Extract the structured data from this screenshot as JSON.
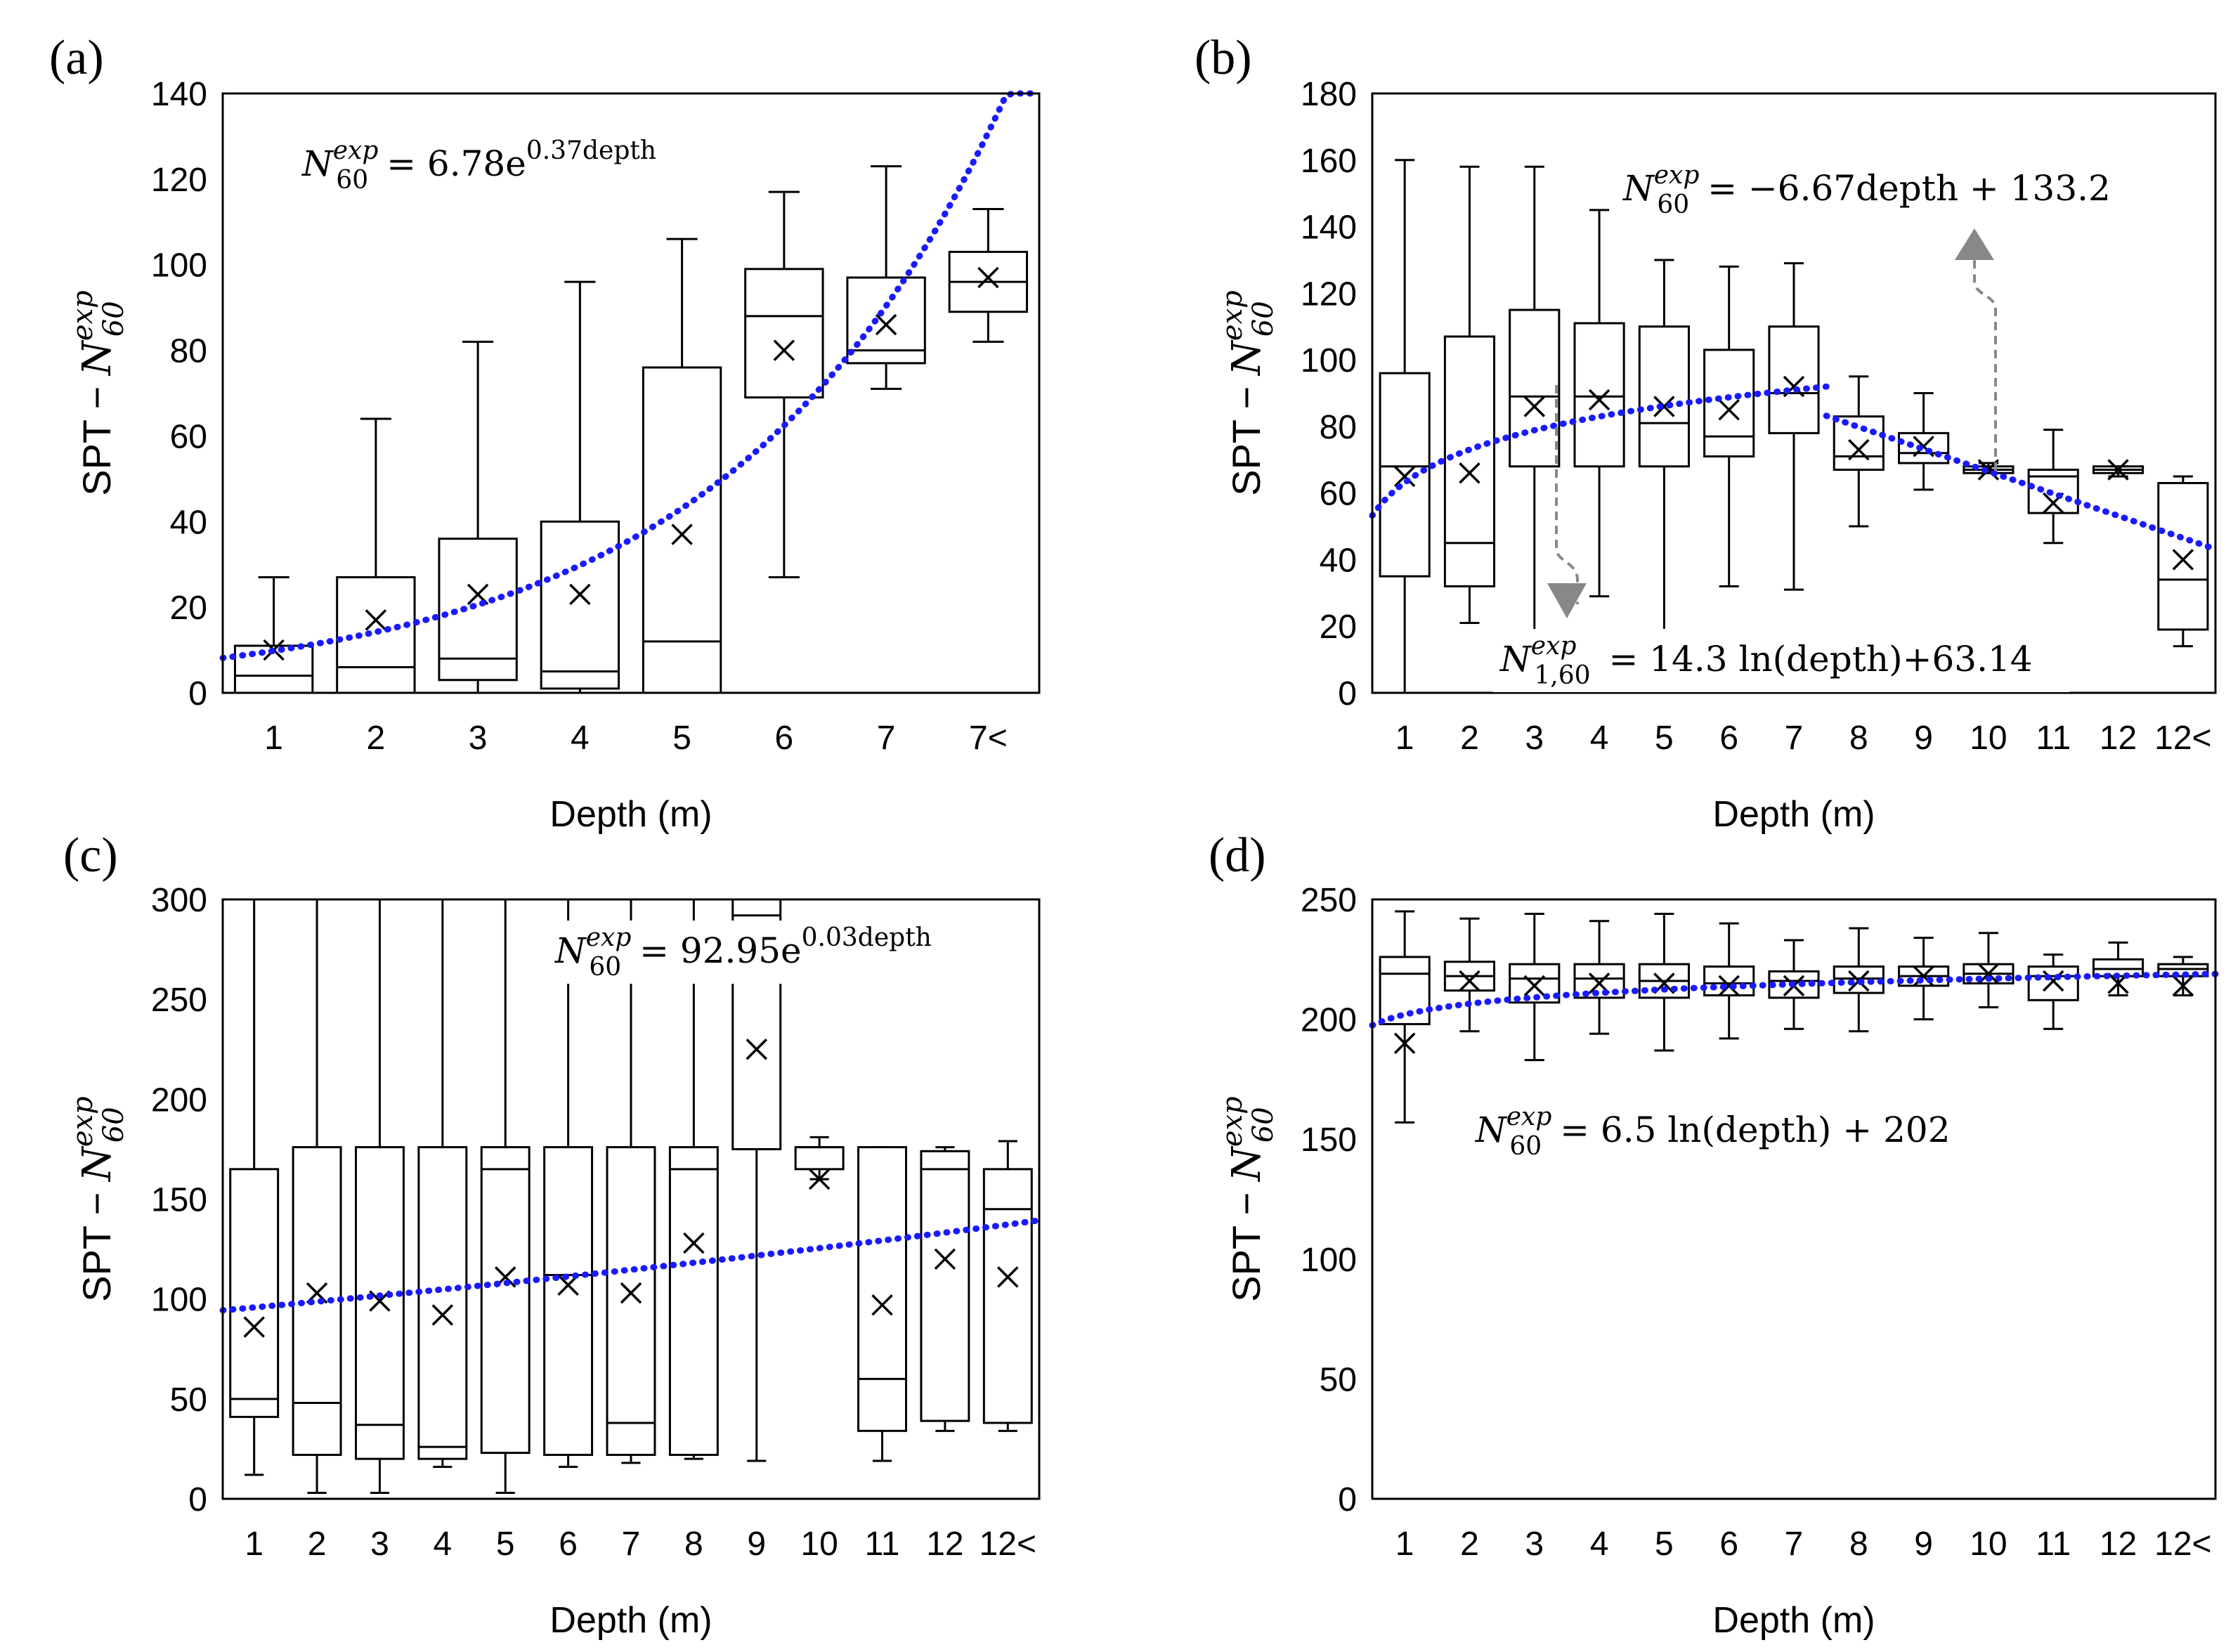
{
  "chart_data": [
    {
      "panel": "(a)",
      "type": "box",
      "xlabel": "Depth (m)",
      "ylabel": "SPT − N60exp",
      "ylim": [
        0,
        140
      ],
      "yticks": [
        0,
        20,
        40,
        60,
        80,
        100,
        120,
        140
      ],
      "categories": [
        "1",
        "2",
        "3",
        "4",
        "5",
        "6",
        "7",
        "7<"
      ],
      "boxes": [
        {
          "min": 0,
          "q1": 0,
          "median": 4,
          "q3": 11,
          "max": 27,
          "mean": 10
        },
        {
          "min": 0,
          "q1": 0,
          "median": 6,
          "q3": 27,
          "max": 64,
          "mean": 17
        },
        {
          "min": 0,
          "q1": 3,
          "median": 8,
          "q3": 36,
          "max": 82,
          "mean": 23
        },
        {
          "min": 0,
          "q1": 1,
          "median": 5,
          "q3": 40,
          "max": 96,
          "mean": 23
        },
        {
          "min": 0,
          "q1": 0,
          "median": 12,
          "q3": 76,
          "max": 106,
          "mean": 37
        },
        {
          "min": 27,
          "q1": 69,
          "median": 88,
          "q3": 99,
          "max": 117,
          "mean": 80
        },
        {
          "min": 71,
          "q1": 77,
          "median": 80,
          "q3": 97,
          "max": 123,
          "mean": 86
        },
        {
          "min": 82,
          "q1": 89,
          "median": 96,
          "q3": 103,
          "max": 113,
          "mean": 97
        }
      ],
      "trend": {
        "form": "exponential",
        "a": 6.78,
        "b": 0.37,
        "depth_range": [
          0.5,
          8.5
        ]
      },
      "equation": {
        "lhs": "N",
        "sup": "exp",
        "sub": "60",
        "rhs": " = 6.78e",
        "rhs_sup": "0.37depth"
      }
    },
    {
      "panel": "(b)",
      "type": "box",
      "xlabel": "Depth (m)",
      "ylabel": "SPT − N60exp",
      "ylim": [
        0,
        180
      ],
      "yticks": [
        0,
        20,
        40,
        60,
        80,
        100,
        120,
        140,
        160,
        180
      ],
      "categories": [
        "1",
        "2",
        "3",
        "4",
        "5",
        "6",
        "7",
        "8",
        "9",
        "10",
        "11",
        "12",
        "12<"
      ],
      "boxes": [
        {
          "min": 0,
          "q1": 35,
          "median": 68,
          "q3": 96,
          "max": 160,
          "mean": 65
        },
        {
          "min": 21,
          "q1": 32,
          "median": 45,
          "q3": 107,
          "max": 158,
          "mean": 66
        },
        {
          "min": 18,
          "q1": 68,
          "median": 89,
          "q3": 115,
          "max": 158,
          "mean": 86
        },
        {
          "min": 29,
          "q1": 68,
          "median": 89,
          "q3": 111,
          "max": 145,
          "mean": 88
        },
        {
          "min": 18,
          "q1": 68,
          "median": 81,
          "q3": 110,
          "max": 130,
          "mean": 86
        },
        {
          "min": 32,
          "q1": 71,
          "median": 77,
          "q3": 103,
          "max": 128,
          "mean": 85
        },
        {
          "min": 31,
          "q1": 78,
          "median": 90,
          "q3": 110,
          "max": 129,
          "mean": 92
        },
        {
          "min": 50,
          "q1": 67,
          "median": 71,
          "q3": 83,
          "max": 95,
          "mean": 73
        },
        {
          "min": 61,
          "q1": 69,
          "median": 72,
          "q3": 78,
          "max": 90,
          "mean": 74
        },
        {
          "min": 66,
          "q1": 66,
          "median": 67,
          "q3": 68,
          "max": 69,
          "mean": 67
        },
        {
          "min": 45,
          "q1": 54,
          "median": 65,
          "q3": 67,
          "max": 79,
          "mean": 57
        },
        {
          "min": 65,
          "q1": 66,
          "median": 67,
          "q3": 68,
          "max": 68,
          "mean": 67
        },
        {
          "min": 14,
          "q1": 19,
          "median": 34,
          "q3": 63,
          "max": 65,
          "mean": 40
        }
      ],
      "trend_log": {
        "form": "logarithmic",
        "a": 14.3,
        "b": 63.14,
        "depth_range": [
          0.5,
          7.5
        ]
      },
      "trend_lin": {
        "form": "linear",
        "m": -6.67,
        "c": 133.2,
        "depth_range": [
          7.5,
          13.5
        ]
      },
      "equation_top": {
        "lhs": "N",
        "sup": "exp",
        "sub": "60",
        "rhs": " = −6.67depth + 133.2"
      },
      "equation_bottom": {
        "lhs": "N",
        "sup": "exp",
        "sub": "1,60",
        "rhs": " = 14.3 ln(depth)+63.14"
      }
    },
    {
      "panel": "(c)",
      "type": "box",
      "xlabel": "Depth (m)",
      "ylabel": "SPT − N60exp",
      "ylim": [
        0,
        300
      ],
      "yticks": [
        0,
        50,
        100,
        150,
        200,
        250,
        300
      ],
      "categories": [
        "1",
        "2",
        "3",
        "4",
        "5",
        "6",
        "7",
        "8",
        "9",
        "10",
        "11",
        "12",
        "12<"
      ],
      "boxes": [
        {
          "min": 12,
          "q1": 41,
          "median": 50,
          "q3": 165,
          "max": 300,
          "mean": 86
        },
        {
          "min": 3,
          "q1": 22,
          "median": 48,
          "q3": 176,
          "max": 300,
          "mean": 103
        },
        {
          "min": 3,
          "q1": 20,
          "median": 37,
          "q3": 176,
          "max": 300,
          "mean": 99
        },
        {
          "min": 16,
          "q1": 20,
          "median": 26,
          "q3": 176,
          "max": 300,
          "mean": 92
        },
        {
          "min": 3,
          "q1": 23,
          "median": 165,
          "q3": 176,
          "max": 300,
          "mean": 111
        },
        {
          "min": 16,
          "q1": 22,
          "median": 112,
          "q3": 176,
          "max": 300,
          "mean": 107
        },
        {
          "min": 18,
          "q1": 22,
          "median": 38,
          "q3": 176,
          "max": 300,
          "mean": 103
        },
        {
          "min": 20,
          "q1": 22,
          "median": 165,
          "q3": 176,
          "max": 300,
          "mean": 128
        },
        {
          "min": 19,
          "q1": 175,
          "median": 292,
          "q3": 300,
          "max": 300,
          "mean": 225
        },
        {
          "min": 160,
          "q1": 165,
          "median": 176,
          "q3": 176,
          "max": 181,
          "mean": 160
        },
        {
          "min": 19,
          "q1": 34,
          "median": 60,
          "q3": 176,
          "max": 176,
          "mean": 97
        },
        {
          "min": 34,
          "q1": 39,
          "median": 165,
          "q3": 174,
          "max": 176,
          "mean": 120
        },
        {
          "min": 34,
          "q1": 38,
          "median": 145,
          "q3": 165,
          "max": 179,
          "mean": 111
        }
      ],
      "trend": {
        "form": "exponential",
        "a": 92.95,
        "b": 0.03,
        "depth_range": [
          0.5,
          13.5
        ]
      },
      "equation": {
        "lhs": "N",
        "sup": "exp",
        "sub": "60",
        "rhs": " = 92.95e",
        "rhs_sup": "0.03depth"
      }
    },
    {
      "panel": "(d)",
      "type": "box",
      "xlabel": "Depth (m)",
      "ylabel": "SPT − N60exp",
      "ylim": [
        0,
        250
      ],
      "yticks": [
        0,
        50,
        100,
        150,
        200,
        250
      ],
      "categories": [
        "1",
        "2",
        "3",
        "4",
        "5",
        "6",
        "7",
        "8",
        "9",
        "10",
        "11",
        "12",
        "12<"
      ],
      "boxes": [
        {
          "min": 157,
          "q1": 198,
          "median": 219,
          "q3": 226,
          "max": 245,
          "mean": 190
        },
        {
          "min": 195,
          "q1": 212,
          "median": 218,
          "q3": 224,
          "max": 242,
          "mean": 216
        },
        {
          "min": 183,
          "q1": 207,
          "median": 217,
          "q3": 223,
          "max": 244,
          "mean": 214
        },
        {
          "min": 194,
          "q1": 209,
          "median": 217,
          "q3": 223,
          "max": 241,
          "mean": 215
        },
        {
          "min": 187,
          "q1": 209,
          "median": 216,
          "q3": 223,
          "max": 244,
          "mean": 215
        },
        {
          "min": 192,
          "q1": 210,
          "median": 215,
          "q3": 222,
          "max": 240,
          "mean": 214
        },
        {
          "min": 196,
          "q1": 209,
          "median": 216,
          "q3": 220,
          "max": 233,
          "mean": 214
        },
        {
          "min": 195,
          "q1": 211,
          "median": 217,
          "q3": 222,
          "max": 238,
          "mean": 216
        },
        {
          "min": 200,
          "q1": 214,
          "median": 218,
          "q3": 222,
          "max": 234,
          "mean": 218
        },
        {
          "min": 205,
          "q1": 215,
          "median": 219,
          "q3": 223,
          "max": 236,
          "mean": 219
        },
        {
          "min": 196,
          "q1": 208,
          "median": 218,
          "q3": 222,
          "max": 227,
          "mean": 216
        },
        {
          "min": 210,
          "q1": 218,
          "median": 221,
          "q3": 225,
          "max": 232,
          "mean": 215
        },
        {
          "min": 210,
          "q1": 218,
          "median": 221,
          "q3": 223,
          "max": 226,
          "mean": 214
        }
      ],
      "trend": {
        "form": "logarithmic",
        "a": 6.5,
        "b": 202,
        "depth_range": [
          0.5,
          13.5
        ]
      },
      "equation": {
        "lhs": "N",
        "sup": "exp",
        "sub": "60",
        "rhs": " = 6.5 ln(depth) + 202"
      }
    }
  ],
  "colors": {
    "trend": "#1a1aff",
    "arrow": "#888888",
    "box": "#000000"
  }
}
